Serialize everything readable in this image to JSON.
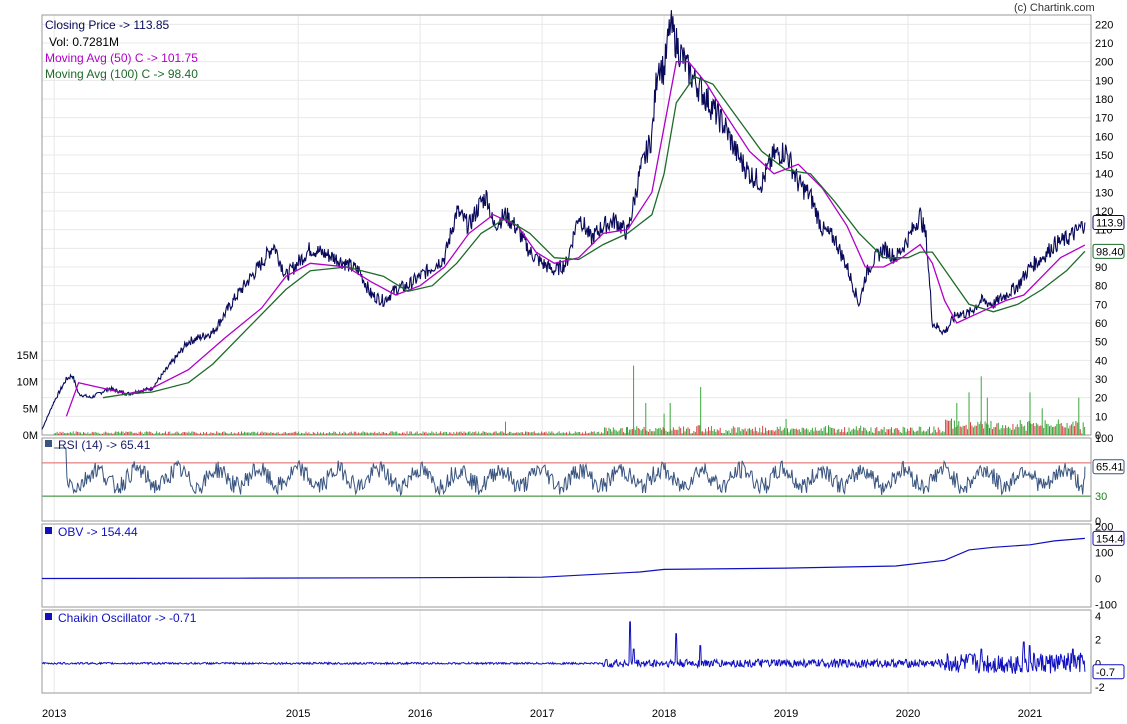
{
  "credit": "(c) Chartink.com",
  "colors": {
    "price": "#0a0a5a",
    "ma50": "#b000c8",
    "ma100": "#1e6b2a",
    "rsi": "#3a5580",
    "obv": "#1010c0",
    "chaikin": "#1010c0",
    "rsi_upper_line": "#e06060",
    "rsi_lower_line": "#208020",
    "vol_up": "#3aa63a",
    "vol_down": "#d84040",
    "grid": "#e8e8e8"
  },
  "legends": {
    "price": "Closing Price -> 113.85",
    "volume": "Vol: 0.7281M",
    "ma50": "Moving Avg (50) C -> 101.75",
    "ma100": "Moving Avg (100) C -> 98.40",
    "rsi": "RSI (14) -> 65.41",
    "obv": "OBV -> 154.44",
    "chaikin": "Chaikin Oscillator -> -0.71"
  },
  "value_tags": {
    "price": "113.9",
    "ma100": "98.40",
    "rsi": "65.41",
    "obv": "154.4",
    "chaikin": "-0.7"
  },
  "chart_data": [
    {
      "type": "line",
      "panel": "price",
      "x_ticks": [
        "2013",
        "2015",
        "2016",
        "2017",
        "2018",
        "2019",
        "2020",
        "2021"
      ],
      "y_ticks": [
        0,
        10,
        20,
        30,
        40,
        50,
        60,
        70,
        80,
        90,
        100,
        110,
        120,
        130,
        140,
        150,
        160,
        170,
        180,
        190,
        200,
        210,
        220
      ],
      "ylim": [
        0,
        225
      ],
      "series": [
        {
          "name": "Closing Price",
          "points": [
            [
              2012.9,
              3
            ],
            [
              2013.0,
              18
            ],
            [
              2013.1,
              30
            ],
            [
              2013.15,
              32
            ],
            [
              2013.2,
              22
            ],
            [
              2013.3,
              20
            ],
            [
              2013.45,
              25
            ],
            [
              2013.6,
              22
            ],
            [
              2013.8,
              25
            ],
            [
              2014.1,
              50
            ],
            [
              2014.3,
              55
            ],
            [
              2014.5,
              75
            ],
            [
              2014.7,
              92
            ],
            [
              2014.8,
              102
            ],
            [
              2014.9,
              85
            ],
            [
              2015.1,
              100
            ],
            [
              2015.3,
              95
            ],
            [
              2015.5,
              88
            ],
            [
              2015.6,
              75
            ],
            [
              2015.7,
              72
            ],
            [
              2015.8,
              78
            ],
            [
              2015.9,
              80
            ],
            [
              2016.0,
              85
            ],
            [
              2016.1,
              90
            ],
            [
              2016.2,
              95
            ],
            [
              2016.3,
              120
            ],
            [
              2016.4,
              112
            ],
            [
              2016.5,
              125
            ],
            [
              2016.55,
              128
            ],
            [
              2016.6,
              112
            ],
            [
              2016.7,
              118
            ],
            [
              2016.8,
              110
            ],
            [
              2016.9,
              98
            ],
            [
              2017.0,
              92
            ],
            [
              2017.1,
              88
            ],
            [
              2017.2,
              92
            ],
            [
              2017.3,
              118
            ],
            [
              2017.4,
              105
            ],
            [
              2017.5,
              112
            ],
            [
              2017.6,
              115
            ],
            [
              2017.7,
              108
            ],
            [
              2017.8,
              140
            ],
            [
              2017.9,
              160
            ],
            [
              2017.95,
              200
            ],
            [
              2018.0,
              195
            ],
            [
              2018.05,
              220
            ],
            [
              2018.1,
              210
            ],
            [
              2018.2,
              195
            ],
            [
              2018.3,
              185
            ],
            [
              2018.4,
              175
            ],
            [
              2018.5,
              165
            ],
            [
              2018.6,
              150
            ],
            [
              2018.7,
              140
            ],
            [
              2018.8,
              135
            ],
            [
              2018.9,
              150
            ],
            [
              2019.0,
              152
            ],
            [
              2019.1,
              135
            ],
            [
              2019.2,
              128
            ],
            [
              2019.3,
              110
            ],
            [
              2019.4,
              105
            ],
            [
              2019.5,
              90
            ],
            [
              2019.6,
              70
            ],
            [
              2019.65,
              85
            ],
            [
              2019.7,
              92
            ],
            [
              2019.8,
              100
            ],
            [
              2019.9,
              95
            ],
            [
              2020.0,
              105
            ],
            [
              2020.1,
              118
            ],
            [
              2020.15,
              105
            ],
            [
              2020.2,
              60
            ],
            [
              2020.3,
              55
            ],
            [
              2020.4,
              65
            ],
            [
              2020.5,
              65
            ],
            [
              2020.6,
              72
            ],
            [
              2020.7,
              70
            ],
            [
              2020.8,
              75
            ],
            [
              2020.9,
              80
            ],
            [
              2021.0,
              90
            ],
            [
              2021.1,
              95
            ],
            [
              2021.2,
              102
            ],
            [
              2021.3,
              105
            ],
            [
              2021.4,
              110
            ],
            [
              2021.45,
              113.85
            ]
          ]
        },
        {
          "name": "Moving Avg (50) C",
          "points": [
            [
              2013.1,
              10
            ],
            [
              2013.2,
              28
            ],
            [
              2013.4,
              25
            ],
            [
              2013.6,
              22
            ],
            [
              2013.8,
              25
            ],
            [
              2014.1,
              35
            ],
            [
              2014.4,
              52
            ],
            [
              2014.7,
              68
            ],
            [
              2014.9,
              85
            ],
            [
              2015.1,
              92
            ],
            [
              2015.4,
              90
            ],
            [
              2015.6,
              82
            ],
            [
              2015.8,
              75
            ],
            [
              2016.0,
              80
            ],
            [
              2016.2,
              90
            ],
            [
              2016.4,
              108
            ],
            [
              2016.6,
              118
            ],
            [
              2016.8,
              112
            ],
            [
              2016.95,
              98
            ],
            [
              2017.1,
              92
            ],
            [
              2017.3,
              95
            ],
            [
              2017.5,
              108
            ],
            [
              2017.7,
              110
            ],
            [
              2017.9,
              130
            ],
            [
              2018.0,
              165
            ],
            [
              2018.1,
              200
            ],
            [
              2018.2,
              200
            ],
            [
              2018.35,
              188
            ],
            [
              2018.5,
              172
            ],
            [
              2018.7,
              152
            ],
            [
              2018.9,
              140
            ],
            [
              2019.1,
              145
            ],
            [
              2019.3,
              132
            ],
            [
              2019.5,
              112
            ],
            [
              2019.65,
              90
            ],
            [
              2019.8,
              90
            ],
            [
              2019.95,
              95
            ],
            [
              2020.1,
              102
            ],
            [
              2020.2,
              92
            ],
            [
              2020.3,
              72
            ],
            [
              2020.4,
              60
            ],
            [
              2020.6,
              66
            ],
            [
              2020.8,
              72
            ],
            [
              2020.95,
              75
            ],
            [
              2021.1,
              85
            ],
            [
              2021.25,
              95
            ],
            [
              2021.45,
              101.75
            ]
          ]
        },
        {
          "name": "Moving Avg (100) C",
          "points": [
            [
              2013.4,
              20
            ],
            [
              2013.6,
              22
            ],
            [
              2013.8,
              23
            ],
            [
              2014.1,
              28
            ],
            [
              2014.3,
              38
            ],
            [
              2014.6,
              58
            ],
            [
              2014.9,
              78
            ],
            [
              2015.1,
              88
            ],
            [
              2015.4,
              90
            ],
            [
              2015.7,
              85
            ],
            [
              2015.9,
              77
            ],
            [
              2016.1,
              80
            ],
            [
              2016.3,
              92
            ],
            [
              2016.5,
              108
            ],
            [
              2016.7,
              116
            ],
            [
              2016.9,
              108
            ],
            [
              2017.1,
              95
            ],
            [
              2017.3,
              94
            ],
            [
              2017.5,
              102
            ],
            [
              2017.7,
              108
            ],
            [
              2017.9,
              118
            ],
            [
              2018.0,
              140
            ],
            [
              2018.1,
              178
            ],
            [
              2018.25,
              192
            ],
            [
              2018.4,
              188
            ],
            [
              2018.6,
              170
            ],
            [
              2018.8,
              152
            ],
            [
              2019.0,
              142
            ],
            [
              2019.2,
              140
            ],
            [
              2019.4,
              125
            ],
            [
              2019.6,
              108
            ],
            [
              2019.8,
              95
            ],
            [
              2020.0,
              95
            ],
            [
              2020.1,
              98
            ],
            [
              2020.2,
              98
            ],
            [
              2020.35,
              84
            ],
            [
              2020.5,
              70
            ],
            [
              2020.7,
              66
            ],
            [
              2020.9,
              70
            ],
            [
              2021.1,
              78
            ],
            [
              2021.3,
              88
            ],
            [
              2021.45,
              98.4
            ]
          ]
        }
      ]
    },
    {
      "type": "bar",
      "panel": "volume",
      "y_ticks": [
        "0M",
        "5M",
        "10M",
        "15M"
      ],
      "ylim": [
        0,
        15
      ],
      "spikes": [
        [
          2016.7,
          2.5
        ],
        [
          2017.7,
          1.5
        ],
        [
          2017.75,
          13
        ],
        [
          2017.85,
          6
        ],
        [
          2018.0,
          4
        ],
        [
          2018.05,
          6
        ],
        [
          2018.3,
          9
        ],
        [
          2019.0,
          3
        ],
        [
          2020.4,
          6
        ],
        [
          2020.5,
          8
        ],
        [
          2020.6,
          11
        ],
        [
          2020.65,
          7
        ],
        [
          2021.0,
          8
        ],
        [
          2021.1,
          5
        ],
        [
          2021.4,
          7
        ]
      ]
    },
    {
      "type": "line",
      "panel": "rsi",
      "y_ticks": [
        0,
        30,
        70,
        100
      ],
      "ylim": [
        0,
        100
      ],
      "levels": {
        "upper": 70,
        "lower": 30
      },
      "last": 65.41
    },
    {
      "type": "line",
      "panel": "obv",
      "y_ticks": [
        -100,
        0,
        100,
        200
      ],
      "ylim": [
        -110,
        210
      ],
      "points": [
        [
          2012.9,
          0
        ],
        [
          2014.5,
          1
        ],
        [
          2016.0,
          3
        ],
        [
          2017.0,
          5
        ],
        [
          2017.8,
          25
        ],
        [
          2018.0,
          35
        ],
        [
          2019.0,
          40
        ],
        [
          2019.9,
          48
        ],
        [
          2020.3,
          70
        ],
        [
          2020.5,
          110
        ],
        [
          2020.7,
          120
        ],
        [
          2021.0,
          130
        ],
        [
          2021.2,
          145
        ],
        [
          2021.45,
          154.44
        ]
      ]
    },
    {
      "type": "line",
      "panel": "chaikin",
      "y_ticks": [
        -2,
        0,
        2,
        4
      ],
      "ylim": [
        -2.5,
        4.5
      ],
      "spikes": [
        [
          2017.72,
          3.5
        ],
        [
          2017.75,
          1.2
        ],
        [
          2018.1,
          2.5
        ],
        [
          2018.3,
          1.5
        ],
        [
          2020.6,
          1.2
        ],
        [
          2020.95,
          1.8
        ],
        [
          2021.0,
          1.5
        ],
        [
          2021.35,
          1.2
        ]
      ],
      "last": -0.71
    }
  ]
}
